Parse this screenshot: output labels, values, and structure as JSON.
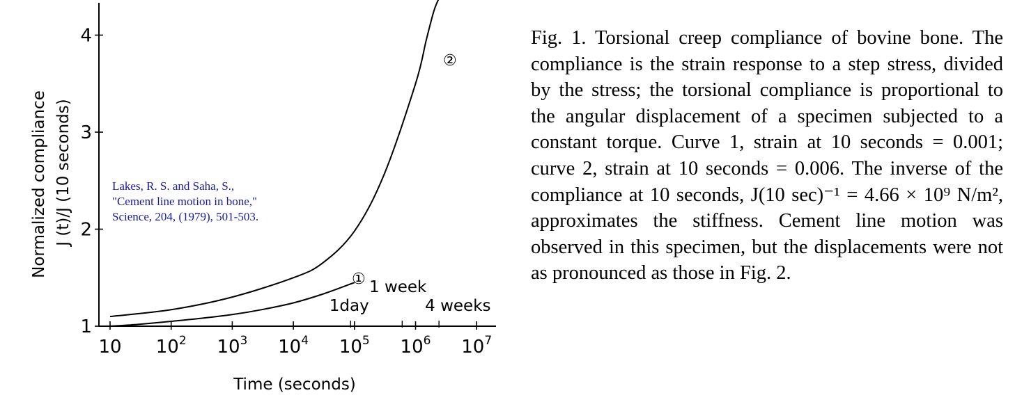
{
  "chart_data": {
    "type": "line",
    "x_scale": "log",
    "xlabel": "Time (seconds)",
    "ylabel_lines": [
      "Normalized compliance",
      "J (t)/J (10 seconds)"
    ],
    "xlim": [
      10,
      10000000
    ],
    "ylim": [
      1,
      4.4
    ],
    "x_ticks": [
      {
        "value": 10,
        "base": "10",
        "exp": ""
      },
      {
        "value": 100,
        "base": "10",
        "exp": "2"
      },
      {
        "value": 1000,
        "base": "10",
        "exp": "3"
      },
      {
        "value": 10000,
        "base": "10",
        "exp": "4"
      },
      {
        "value": 100000,
        "base": "10",
        "exp": "5"
      },
      {
        "value": 1000000,
        "base": "10",
        "exp": "6"
      },
      {
        "value": 10000000,
        "base": "10",
        "exp": "7"
      }
    ],
    "y_ticks": [
      {
        "value": 1,
        "label": "1"
      },
      {
        "value": 2,
        "label": "2"
      },
      {
        "value": 3,
        "label": "3"
      },
      {
        "value": 4,
        "label": "4"
      }
    ],
    "time_markers": [
      {
        "value": 86400,
        "label": "1day"
      },
      {
        "value": 604800,
        "label": "1 week"
      },
      {
        "value": 2419200,
        "label": "4 weeks"
      }
    ],
    "series": [
      {
        "label": "①",
        "x": [
          10,
          30,
          100,
          300,
          1000,
          3000,
          10000,
          30000,
          100000
        ],
        "y": [
          1.0,
          1.02,
          1.05,
          1.08,
          1.12,
          1.17,
          1.24,
          1.33,
          1.45
        ]
      },
      {
        "label": "②",
        "x": [
          10,
          100,
          1000,
          10000,
          30000,
          100000,
          300000,
          1000000,
          1500000,
          2000000,
          2500000
        ],
        "y": [
          1.1,
          1.17,
          1.3,
          1.5,
          1.65,
          1.98,
          2.55,
          3.5,
          3.95,
          4.25,
          4.4
        ]
      }
    ]
  },
  "citation_lines": [
    "Lakes, R. S. and Saha, S.,",
    "\"Cement line motion in bone,\"",
    "Science, 204, (1979), 501-503."
  ],
  "caption": "Fig. 1. Torsional creep compliance of bovine bone. The compliance is the strain response to a step stress, divided by the stress; the torsional compliance is proportional to the angular displacement of a specimen subjected to a constant torque. Curve 1, strain at 10 seconds = 0.001; curve 2, strain at 10 seconds = 0.006. The inverse of the compliance at 10 seconds, J(10 sec)⁻¹ = 4.66 × 10⁹ N/m², approximates the stiffness. Cement line motion was observed in this specimen, but the displacements were not as pronounced as those in Fig. 2."
}
